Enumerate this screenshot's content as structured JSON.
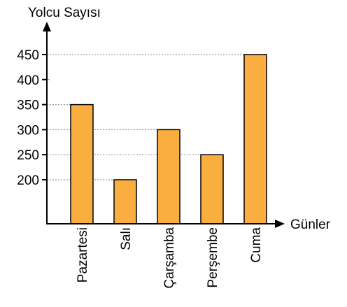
{
  "chart_data": {
    "type": "bar",
    "ylabel": "Yolcu Sayısı",
    "xlabel": "Günler",
    "categories": [
      "Pazartesi",
      "Salı",
      "Çarşamba",
      "Perşembe",
      "Cuma"
    ],
    "values": [
      350,
      200,
      300,
      250,
      450
    ],
    "y_ticks": [
      "200",
      "250",
      "300",
      "350",
      "400",
      "450"
    ],
    "ylim": [
      110,
      490
    ],
    "grid": "dotted horizontal lines from axis to each bar top",
    "legend": "none",
    "colors": {
      "bar_fill": "#FBAE40",
      "bar_stroke": "#000000",
      "grid": "#999999",
      "axis": "#000000"
    }
  }
}
